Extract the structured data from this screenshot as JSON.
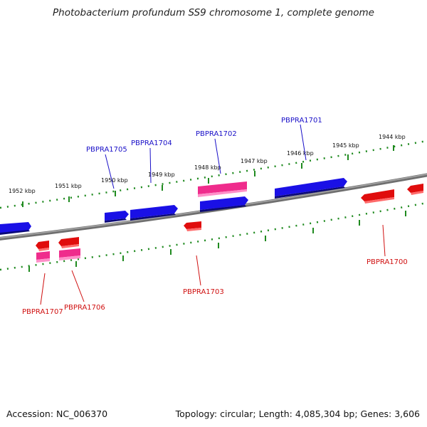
{
  "title": "Photobacterium profundum SS9 chromosome 1, complete genome",
  "footer": {
    "accession": "Accession: NC_006370",
    "summary": "Topology: circular; Length: 4,085,304 bp; Genes: 3,606"
  },
  "colors": {
    "forward": "#1a10e6",
    "reverse": "#f20a0a",
    "rna": "#ef2c8c",
    "backbone": "#888888",
    "tick": "#1f8a1f",
    "label_forward": "#1a10c8",
    "label_reverse": "#d01010"
  },
  "kbp_labels": [
    "1952 kbp",
    "1951 kbp",
    "1950 kbp",
    "1949 kbp",
    "1948 kbp",
    "1947 kbp",
    "1946 kbp",
    "1945 kbp",
    "1944 kbp"
  ],
  "genes": [
    {
      "name": "PBPRA1705",
      "strand": "forward"
    },
    {
      "name": "PBPRA1704",
      "strand": "forward"
    },
    {
      "name": "PBPRA1702",
      "strand": "forward"
    },
    {
      "name": "PBPRA1701",
      "strand": "forward"
    },
    {
      "name": "PBPRA1707",
      "strand": "reverse"
    },
    {
      "name": "PBPRA1706",
      "strand": "reverse"
    },
    {
      "name": "PBPRA1703",
      "strand": "reverse"
    },
    {
      "name": "PBPRA1700",
      "strand": "reverse"
    }
  ]
}
